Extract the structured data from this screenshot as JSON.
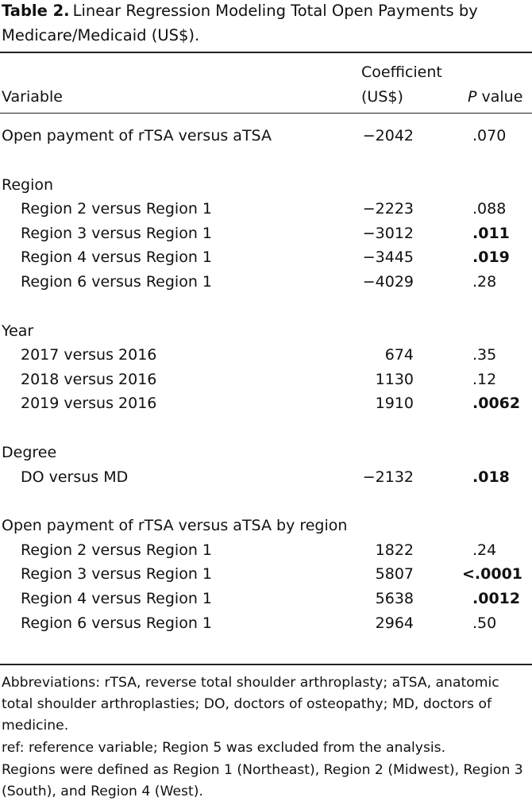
{
  "title": {
    "label": "Table 2.",
    "text": "Linear Regression Modeling Total Open Payments by Medicare/Medicaid (US$)."
  },
  "header": {
    "variable": "Variable",
    "coefficient": [
      "Coefficient",
      "(US$)"
    ],
    "p_value": {
      "italic": "P",
      "text": "value"
    }
  },
  "groups": [
    {
      "rows": [
        {
          "variable": "Open payment of rTSA versus aTSA",
          "coefficient": "−2042",
          "p_value": ".070",
          "bold": false
        }
      ]
    },
    {
      "heading": "Region",
      "rows": [
        {
          "variable": "Region 2 versus Region 1",
          "coefficient": "−2223",
          "p_value": ".088",
          "bold": false
        },
        {
          "variable": "Region 3 versus Region 1",
          "coefficient": "−3012",
          "p_value": ".011",
          "bold": true
        },
        {
          "variable": "Region 4 versus Region 1",
          "coefficient": "−3445",
          "p_value": ".019",
          "bold": true
        },
        {
          "variable": "Region 6 versus Region 1",
          "coefficient": "−4029",
          "p_value": ".28",
          "bold": false
        }
      ]
    },
    {
      "heading": "Year",
      "rows": [
        {
          "variable": "2017 versus 2016",
          "coefficient": "674",
          "p_value": ".35",
          "bold": false
        },
        {
          "variable": "2018 versus 2016",
          "coefficient": "1130",
          "p_value": ".12",
          "bold": false
        },
        {
          "variable": "2019 versus 2016",
          "coefficient": "1910",
          "p_value": ".0062",
          "bold": true
        }
      ]
    },
    {
      "heading": "Degree",
      "rows": [
        {
          "variable": "DO versus MD",
          "coefficient": "−2132",
          "p_value": ".018",
          "bold": true
        }
      ]
    },
    {
      "heading": "Open payment of rTSA versus aTSA by region",
      "rows": [
        {
          "variable": "Region 2 versus Region 1",
          "coefficient": "1822",
          "p_value": ".24",
          "bold": false
        },
        {
          "variable": "Region 3 versus Region 1",
          "coefficient": "5807",
          "p_value": "<.0001",
          "bold": true
        },
        {
          "variable": "Region 4 versus Region 1",
          "coefficient": "5638",
          "p_value": ".0012",
          "bold": true
        },
        {
          "variable": "Region 6 versus Region 1",
          "coefficient": "2964",
          "p_value": ".50",
          "bold": false
        }
      ]
    }
  ],
  "footnotes": [
    "Abbreviations: rTSA, reverse total shoulder arthroplasty; aTSA, anatomic total shoulder arthroplasties; DO, doctors of osteopathy; MD, doctors of medicine.",
    "ref: reference variable; Region 5 was excluded from the analysis.",
    "Regions were defined as Region 1 (Northeast), Region 2 (Midwest), Region 3 (South), and Region 4 (West)."
  ]
}
